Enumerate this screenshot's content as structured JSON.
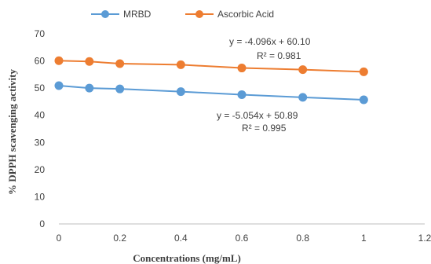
{
  "chart_data": {
    "type": "line",
    "title": "",
    "xlabel": "Concentrations (mg/mL)",
    "ylabel": "% DPPH scavenging activity",
    "xlim": [
      0,
      1.2
    ],
    "ylim": [
      0,
      70
    ],
    "xticks": [
      "0",
      "0.2",
      "0.4",
      "0.6",
      "0.8",
      "1",
      "1.2"
    ],
    "yticks": [
      "0",
      "10",
      "20",
      "30",
      "40",
      "50",
      "60",
      "70"
    ],
    "grid": false,
    "legend": "top",
    "x": [
      0,
      0.1,
      0.2,
      0.4,
      0.6,
      0.8,
      1
    ],
    "series": [
      {
        "name": "MRBD",
        "color": "#5B9BD5",
        "values": [
          50.9,
          50.0,
          49.7,
          48.7,
          47.6,
          46.6,
          45.7
        ],
        "equation": "y = -5.054x + 50.89",
        "r2": "R² = 0.995"
      },
      {
        "name": "Ascorbic Acid",
        "color": "#ED7D31",
        "values": [
          60.1,
          59.8,
          59.0,
          58.6,
          57.4,
          56.8,
          56.0
        ],
        "equation": "y = -4.096x + 60.10",
        "r2": "R² = 0.981"
      }
    ]
  }
}
